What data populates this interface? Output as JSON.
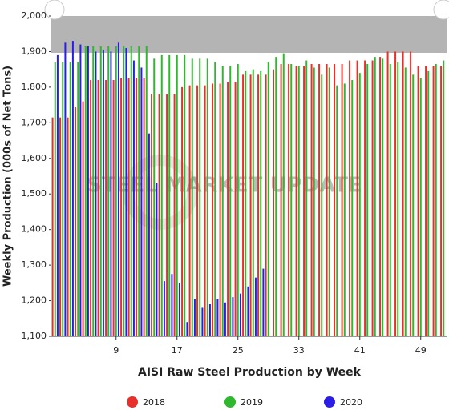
{
  "chart_data": {
    "type": "bar",
    "watermark": "STEEL MARKET UPDATE",
    "x_label": "AISI Raw Steel Production by Week",
    "y_label": "Weekly Production (000s of Net Tons)",
    "x": [
      1,
      2,
      3,
      4,
      5,
      6,
      7,
      8,
      9,
      10,
      11,
      12,
      13,
      14,
      15,
      16,
      17,
      18,
      19,
      20,
      21,
      22,
      23,
      24,
      25,
      26,
      27,
      28,
      29,
      30,
      31,
      32,
      33,
      34,
      35,
      36,
      37,
      38,
      39,
      40,
      41,
      42,
      43,
      44,
      45,
      46,
      47,
      48,
      49,
      50,
      51,
      52
    ],
    "xlim": [
      0.5,
      52.5
    ],
    "xticks": [
      9,
      17,
      25,
      33,
      41,
      49
    ],
    "ylim": [
      1100,
      2000
    ],
    "yticks": [
      {
        "value": 1100,
        "label": "1,100"
      },
      {
        "value": 1200,
        "label": "1,200"
      },
      {
        "value": 1300,
        "label": "1,300"
      },
      {
        "value": 1400,
        "label": "1,400"
      },
      {
        "value": 1500,
        "label": "1,500"
      },
      {
        "value": 1600,
        "label": "1,600"
      },
      {
        "value": 1700,
        "label": "1,700"
      },
      {
        "value": 1800,
        "label": "1,800"
      },
      {
        "value": 1900,
        "label": "1,900"
      },
      {
        "value": 2000,
        "label": "2,000"
      }
    ],
    "series": [
      {
        "name": "2018",
        "color": "#e8302a",
        "values": [
          1715,
          1715,
          1715,
          1745,
          1760,
          1820,
          1820,
          1820,
          1820,
          1825,
          1825,
          1825,
          1825,
          1780,
          1780,
          1780,
          1780,
          1800,
          1805,
          1805,
          1805,
          1810,
          1810,
          1815,
          1815,
          1835,
          1835,
          1835,
          1835,
          1850,
          1865,
          1865,
          1860,
          1860,
          1865,
          1865,
          1865,
          1865,
          1865,
          1875,
          1875,
          1875,
          1875,
          1885,
          1900,
          1900,
          1900,
          1900,
          1860,
          1860,
          1860,
          1860
        ]
      },
      {
        "name": "2019",
        "color": "#2db82d",
        "values": [
          1870,
          1870,
          1870,
          1870,
          1915,
          1915,
          1915,
          1915,
          1915,
          1915,
          1915,
          1915,
          1915,
          1880,
          1890,
          1890,
          1890,
          1890,
          1880,
          1880,
          1880,
          1870,
          1860,
          1860,
          1865,
          1845,
          1850,
          1845,
          1870,
          1885,
          1895,
          1865,
          1860,
          1875,
          1855,
          1835,
          1855,
          1805,
          1810,
          1820,
          1840,
          1865,
          1885,
          1880,
          1865,
          1870,
          1855,
          1835,
          1825,
          1845,
          1865,
          1875
        ]
      },
      {
        "name": "2020",
        "color": "#2a1ee6",
        "values": [
          1890,
          1925,
          1930,
          1920,
          1915,
          1900,
          1905,
          1900,
          1925,
          1910,
          1875,
          1855,
          1670,
          1530,
          1255,
          1275,
          1250,
          1140,
          1205,
          1180,
          1190,
          1205,
          1195,
          1210,
          1220,
          1240,
          1265,
          1290,
          null,
          null,
          null,
          null,
          null,
          null,
          null,
          null,
          null,
          null,
          null,
          null,
          null,
          null,
          null,
          null,
          null,
          null,
          null,
          null,
          null,
          null,
          null,
          null
        ]
      }
    ]
  }
}
